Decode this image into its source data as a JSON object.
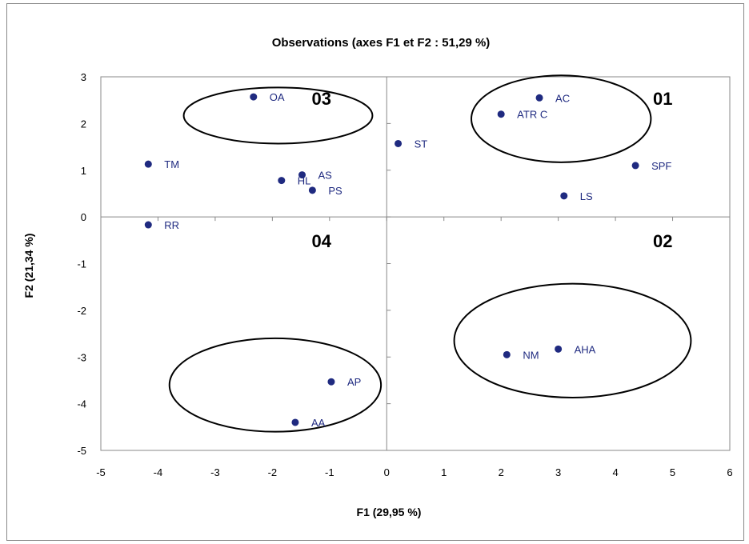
{
  "chart_data": {
    "type": "scatter",
    "title": "Observations (axes F1 et F2 : 51,29 %)",
    "xlabel": "F1 (29,95 %)",
    "ylabel": "F2 (21,34 %)",
    "xlim": [
      -5,
      6
    ],
    "ylim": [
      -5,
      3
    ],
    "xticks": [
      "-5",
      "-4",
      "-3",
      "-2",
      "-1",
      "0",
      "1",
      "2",
      "3",
      "4",
      "5",
      "6"
    ],
    "yticks": [
      "3",
      "2",
      "1",
      "0",
      "-1",
      "-2",
      "-3",
      "-4",
      "-5"
    ],
    "grid": false,
    "point_color": "#1f2a80",
    "points": [
      {
        "label": "OA",
        "x": -2.33,
        "y": 2.57
      },
      {
        "label": "AC",
        "x": 2.67,
        "y": 2.55
      },
      {
        "label": "ATR C",
        "x": 2.0,
        "y": 2.2
      },
      {
        "label": "ST",
        "x": 0.2,
        "y": 1.57
      },
      {
        "label": "TM",
        "x": -4.17,
        "y": 1.13
      },
      {
        "label": "SPF",
        "x": 4.35,
        "y": 1.1
      },
      {
        "label": "AS",
        "x": -1.48,
        "y": 0.9
      },
      {
        "label": "HL",
        "x": -1.84,
        "y": 0.78
      },
      {
        "label": "PS",
        "x": -1.3,
        "y": 0.57
      },
      {
        "label": "LS",
        "x": 3.1,
        "y": 0.45
      },
      {
        "label": "RR",
        "x": -4.17,
        "y": -0.17
      },
      {
        "label": "NM",
        "x": 2.1,
        "y": -2.95
      },
      {
        "label": "AHA",
        "x": 3.0,
        "y": -2.83
      },
      {
        "label": "AP",
        "x": -0.97,
        "y": -3.53
      },
      {
        "label": "AA",
        "x": -1.6,
        "y": -4.4
      }
    ],
    "annotations": [
      {
        "text": "03",
        "x": -0.97,
        "y": 2.4
      },
      {
        "text": "01",
        "x": 5.0,
        "y": 2.4
      },
      {
        "text": "04",
        "x": -0.97,
        "y": -0.65
      },
      {
        "text": "02",
        "x": 5.0,
        "y": -0.65
      }
    ],
    "ellipses": [
      {
        "cx": -1.9,
        "cy": 2.17,
        "rx": 1.65,
        "ry": 0.6
      },
      {
        "cx": 3.05,
        "cy": 2.1,
        "rx": 1.57,
        "ry": 0.93
      },
      {
        "cx": 3.25,
        "cy": -2.65,
        "rx": 2.07,
        "ry": 1.22
      },
      {
        "cx": -1.95,
        "cy": -3.6,
        "rx": 1.85,
        "ry": 1.0
      }
    ]
  }
}
